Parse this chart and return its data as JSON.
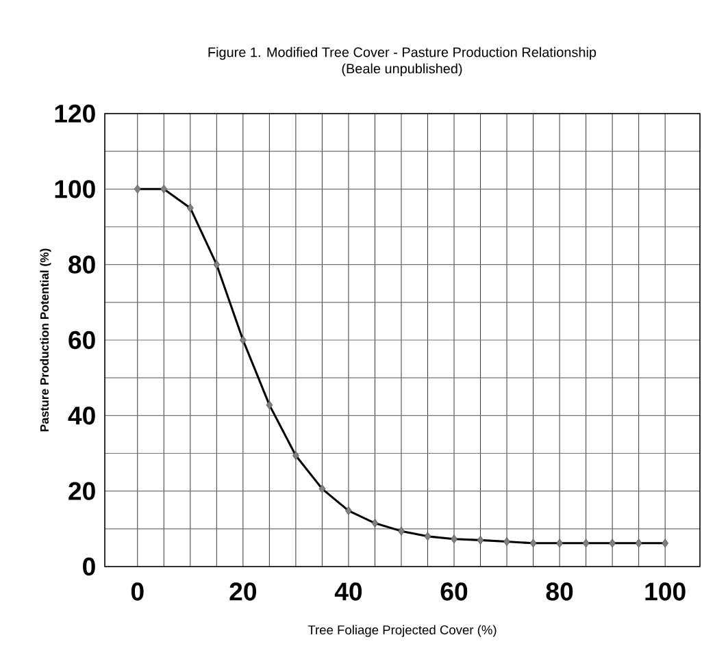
{
  "chart_data": {
    "type": "line",
    "title": "Figure 1.  Modified Tree Cover - Pasture Production Relationship",
    "subtitle": "(Beale unpublished)",
    "xlabel": "Tree Foliage Projected Cover (%)",
    "ylabel": "Pasture Production Potential (%)",
    "x": [
      0,
      5,
      10,
      15,
      20,
      25,
      30,
      35,
      40,
      45,
      50,
      55,
      60,
      65,
      70,
      75,
      80,
      85,
      90,
      95,
      100
    ],
    "values": [
      100,
      100,
      95,
      80,
      60,
      42.8,
      29.4,
      20.6,
      14.8,
      11.5,
      9.4,
      8.0,
      7.3,
      7.0,
      6.6,
      6.2,
      6.2,
      6.2,
      6.2,
      6.2,
      6.2
    ],
    "color": "#000000",
    "marker": "diamond",
    "line_style": "solid",
    "grid": true,
    "xlim": [
      -6.2,
      106.6
    ],
    "ylim": [
      0,
      120
    ],
    "xticks": [
      0,
      {
        "value": 5,
        "label": null
      },
      {
        "value": 10,
        "label": null
      },
      {
        "value": 15,
        "label": null
      },
      20,
      {
        "value": 25,
        "label": null
      },
      {
        "value": 30,
        "label": null
      },
      {
        "value": 35,
        "label": null
      },
      40,
      {
        "value": 45,
        "label": null
      },
      {
        "value": 50,
        "label": null
      },
      {
        "value": 55,
        "label": null
      },
      60,
      {
        "value": 65,
        "label": null
      },
      {
        "value": 70,
        "label": null
      },
      {
        "value": 75,
        "label": null
      },
      80,
      {
        "value": 85,
        "label": null
      },
      {
        "value": 90,
        "label": null
      },
      {
        "value": 95,
        "label": null
      },
      100
    ],
    "yticks": [
      0,
      {
        "value": 10,
        "label": null
      },
      20,
      {
        "value": 30,
        "label": null
      },
      40,
      {
        "value": 50,
        "label": null
      },
      60,
      {
        "value": 70,
        "label": null
      },
      80,
      {
        "value": 90,
        "label": null
      },
      100,
      {
        "value": 110,
        "label": null
      },
      120
    ]
  }
}
